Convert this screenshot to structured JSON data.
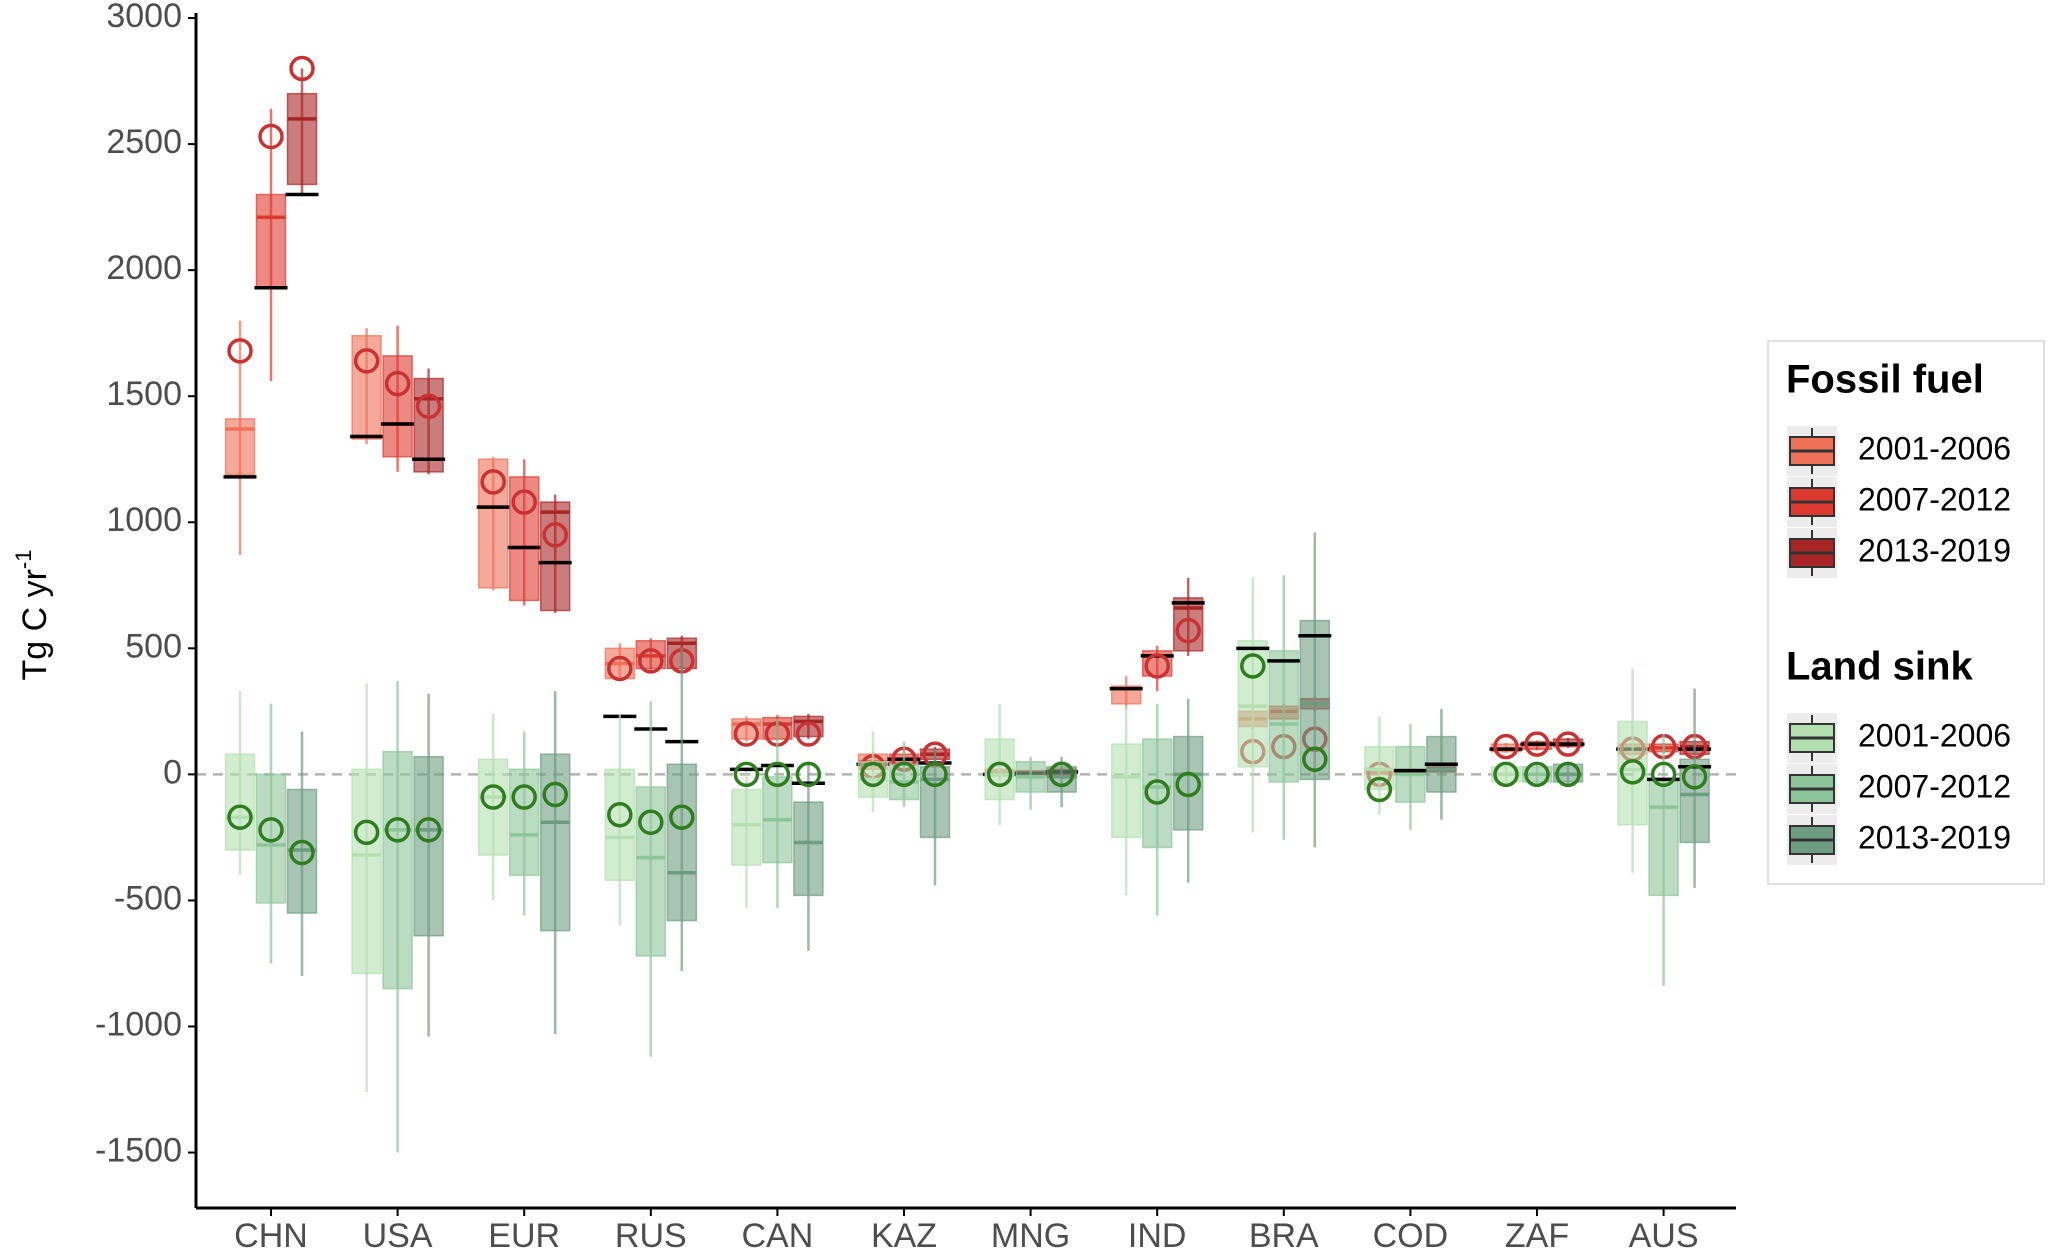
{
  "chart_data": {
    "type": "box",
    "ylabel": "Tg C  yr",
    "ylabel_sup": "-1",
    "categories": [
      "CHN",
      "USA",
      "EUR",
      "RUS",
      "CAN",
      "KAZ",
      "MNG",
      "IND",
      "BRA",
      "COD",
      "ZAF",
      "AUS"
    ],
    "ylim": [
      -1720,
      3020
    ],
    "yticks": [
      -1500,
      -1000,
      -500,
      0,
      500,
      1000,
      1500,
      2000,
      2500,
      3000
    ],
    "reference_line": 0,
    "groups": [
      {
        "title": "Fossil fuel",
        "estimate_color": "#c83232",
        "series": [
          {
            "name": "2001-2006",
            "color": "#ee7057",
            "boxes": [
              {
                "low": 870,
                "q1": 1190,
                "median": 1370,
                "q3": 1410,
                "high": 1800,
                "estimate": 1680,
                "reference": 1180
              },
              {
                "low": 1310,
                "q1": 1330,
                "median": 1340,
                "q3": 1740,
                "high": 1770,
                "estimate": 1640,
                "reference": 1340
              },
              {
                "low": 730,
                "q1": 740,
                "median": 1060,
                "q3": 1250,
                "high": 1260,
                "estimate": 1160,
                "reference": 1060
              },
              {
                "low": 370,
                "q1": 380,
                "median": 440,
                "q3": 500,
                "high": 520,
                "estimate": 420,
                "reference": 230
              },
              {
                "low": 130,
                "q1": 140,
                "median": 200,
                "q3": 220,
                "high": 230,
                "estimate": 160,
                "reference": null
              },
              {
                "low": 10,
                "q1": 20,
                "median": 50,
                "q3": 80,
                "high": 90,
                "estimate": 30,
                "reference": 40
              },
              {
                "low": -10,
                "q1": -5,
                "median": 5,
                "q3": 20,
                "high": 25,
                "estimate": 0,
                "reference": 0
              },
              {
                "low": 260,
                "q1": 280,
                "median": 340,
                "q3": 350,
                "high": 390,
                "estimate": null,
                "reference": 340
              },
              {
                "low": 180,
                "q1": 190,
                "median": 220,
                "q3": 250,
                "high": 260,
                "estimate": 90,
                "reference": null
              },
              {
                "low": -5,
                "q1": 0,
                "median": 10,
                "q3": 20,
                "high": 25,
                "estimate": 0,
                "reference": null
              },
              {
                "low": 85,
                "q1": 90,
                "median": 100,
                "q3": 120,
                "high": 125,
                "estimate": 110,
                "reference": 100
              },
              {
                "low": 75,
                "q1": 80,
                "median": 100,
                "q3": 120,
                "high": 125,
                "estimate": 100,
                "reference": 100
              }
            ]
          },
          {
            "name": "2007-2012",
            "color": "#dd3a2f",
            "boxes": [
              {
                "low": 1560,
                "q1": 1930,
                "median": 2210,
                "q3": 2300,
                "high": 2640,
                "estimate": 2530,
                "reference": 1930
              },
              {
                "low": 1200,
                "q1": 1260,
                "median": 1390,
                "q3": 1660,
                "high": 1780,
                "estimate": 1550,
                "reference": 1390
              },
              {
                "low": 670,
                "q1": 690,
                "median": 900,
                "q3": 1180,
                "high": 1250,
                "estimate": 1080,
                "reference": 900
              },
              {
                "low": 410,
                "q1": 420,
                "median": 470,
                "q3": 530,
                "high": 540,
                "estimate": 450,
                "reference": 180
              },
              {
                "low": 135,
                "q1": 140,
                "median": 200,
                "q3": 225,
                "high": 235,
                "estimate": 160,
                "reference": null
              },
              {
                "low": 30,
                "q1": 40,
                "median": 60,
                "q3": 80,
                "high": 100,
                "estimate": 60,
                "reference": 60
              },
              {
                "low": -10,
                "q1": -5,
                "median": 5,
                "q3": 15,
                "high": 20,
                "estimate": null,
                "reference": 5
              },
              {
                "low": 330,
                "q1": 390,
                "median": 470,
                "q3": 490,
                "high": 510,
                "estimate": 430,
                "reference": 470
              },
              {
                "low": 210,
                "q1": 220,
                "median": 250,
                "q3": 270,
                "high": 280,
                "estimate": 110,
                "reference": null
              },
              {
                "low": 0,
                "q1": 5,
                "median": 15,
                "q3": 20,
                "high": 25,
                "estimate": null,
                "reference": null
              },
              {
                "low": 95,
                "q1": 100,
                "median": 120,
                "q3": 130,
                "high": 135,
                "estimate": 120,
                "reference": 120
              },
              {
                "low": 85,
                "q1": 90,
                "median": 105,
                "q3": 120,
                "high": 125,
                "estimate": 110,
                "reference": null
              }
            ]
          },
          {
            "name": "2013-2019",
            "color": "#a82525",
            "boxes": [
              {
                "low": 2300,
                "q1": 2340,
                "median": 2600,
                "q3": 2700,
                "high": 2800,
                "estimate": 2800,
                "reference": 2300
              },
              {
                "low": 1190,
                "q1": 1200,
                "median": 1490,
                "q3": 1570,
                "high": 1610,
                "estimate": 1460,
                "reference": 1250
              },
              {
                "low": 640,
                "q1": 650,
                "median": 1040,
                "q3": 1080,
                "high": 1110,
                "estimate": 950,
                "reference": 840
              },
              {
                "low": 410,
                "q1": 420,
                "median": 520,
                "q3": 540,
                "high": 550,
                "estimate": 450,
                "reference": 130
              },
              {
                "low": 140,
                "q1": 150,
                "median": 210,
                "q3": 230,
                "high": 240,
                "estimate": 160,
                "reference": null
              },
              {
                "low": 50,
                "q1": 60,
                "median": 80,
                "q3": 100,
                "high": 110,
                "estimate": 80,
                "reference": 45
              },
              {
                "low": -15,
                "q1": -10,
                "median": 5,
                "q3": 20,
                "high": 25,
                "estimate": 0,
                "reference": 10
              },
              {
                "low": 470,
                "q1": 490,
                "median": 660,
                "q3": 700,
                "high": 780,
                "estimate": 570,
                "reference": 680
              },
              {
                "low": 250,
                "q1": 260,
                "median": 280,
                "q3": 300,
                "high": 310,
                "estimate": 140,
                "reference": null
              },
              {
                "low": 5,
                "q1": 10,
                "median": 20,
                "q3": 30,
                "high": 35,
                "estimate": null,
                "reference": null
              },
              {
                "low": 105,
                "q1": 110,
                "median": 120,
                "q3": 140,
                "high": 145,
                "estimate": 120,
                "reference": 120
              },
              {
                "low": 75,
                "q1": 80,
                "median": 110,
                "q3": 130,
                "high": 135,
                "estimate": 110,
                "reference": 100
              }
            ]
          }
        ]
      },
      {
        "title": "Land sink",
        "estimate_color": "#2e7d1e",
        "series": [
          {
            "name": "2001-2006",
            "color": "#b4dfb0",
            "boxes": [
              {
                "low": -400,
                "q1": -300,
                "median": -170,
                "q3": 80,
                "high": 330,
                "estimate": -170,
                "reference": null
              },
              {
                "low": -1260,
                "q1": -790,
                "median": -320,
                "q3": 20,
                "high": 360,
                "estimate": -230,
                "reference": null
              },
              {
                "low": -500,
                "q1": -320,
                "median": -90,
                "q3": 60,
                "high": 240,
                "estimate": -90,
                "reference": null
              },
              {
                "low": -600,
                "q1": -420,
                "median": -250,
                "q3": 20,
                "high": 240,
                "estimate": -160,
                "reference": null
              },
              {
                "low": -530,
                "q1": -360,
                "median": -200,
                "q3": -60,
                "high": 30,
                "estimate": 0,
                "reference": 20
              },
              {
                "low": -150,
                "q1": -90,
                "median": -20,
                "q3": 50,
                "high": 170,
                "estimate": 0,
                "reference": null
              },
              {
                "low": -200,
                "q1": -100,
                "median": 0,
                "q3": 140,
                "high": 280,
                "estimate": 0,
                "reference": null
              },
              {
                "low": -480,
                "q1": -250,
                "median": -10,
                "q3": 120,
                "high": 270,
                "estimate": null,
                "reference": null
              },
              {
                "low": -230,
                "q1": 30,
                "median": 270,
                "q3": 530,
                "high": 780,
                "estimate": 430,
                "reference": 500
              },
              {
                "low": -160,
                "q1": -60,
                "median": 20,
                "q3": 110,
                "high": 230,
                "estimate": -60,
                "reference": null
              },
              {
                "low": -40,
                "q1": -30,
                "median": 0,
                "q3": 30,
                "high": 40,
                "estimate": 0,
                "reference": null
              },
              {
                "low": -390,
                "q1": -200,
                "median": 20,
                "q3": 210,
                "high": 420,
                "estimate": 10,
                "reference": null
              }
            ]
          },
          {
            "name": "2007-2012",
            "color": "#8dc59a",
            "boxes": [
              {
                "low": -750,
                "q1": -510,
                "median": -280,
                "q3": 0,
                "high": 280,
                "estimate": -220,
                "reference": null
              },
              {
                "low": -1500,
                "q1": -850,
                "median": -220,
                "q3": 90,
                "high": 370,
                "estimate": -220,
                "reference": null
              },
              {
                "low": -560,
                "q1": -400,
                "median": -240,
                "q3": 20,
                "high": 170,
                "estimate": -90,
                "reference": null
              },
              {
                "low": -1120,
                "q1": -720,
                "median": -330,
                "q3": -50,
                "high": 290,
                "estimate": -190,
                "reference": null
              },
              {
                "low": -530,
                "q1": -350,
                "median": -180,
                "q3": -10,
                "high": 220,
                "estimate": 0,
                "reference": 35
              },
              {
                "low": -130,
                "q1": -100,
                "median": -30,
                "q3": 40,
                "high": 130,
                "estimate": 0,
                "reference": null
              },
              {
                "low": -140,
                "q1": -70,
                "median": -10,
                "q3": 50,
                "high": 70,
                "estimate": null,
                "reference": null
              },
              {
                "low": -560,
                "q1": -290,
                "median": -50,
                "q3": 140,
                "high": 280,
                "estimate": -70,
                "reference": null
              },
              {
                "low": -260,
                "q1": -30,
                "median": 200,
                "q3": 490,
                "high": 790,
                "estimate": null,
                "reference": 450
              },
              {
                "low": -220,
                "q1": -110,
                "median": 0,
                "q3": 110,
                "high": 200,
                "estimate": null,
                "reference": 15
              },
              {
                "low": -40,
                "q1": -30,
                "median": 0,
                "q3": 30,
                "high": 40,
                "estimate": 0,
                "reference": null
              },
              {
                "low": -840,
                "q1": -480,
                "median": -130,
                "q3": -20,
                "high": 160,
                "estimate": 0,
                "reference": -20
              }
            ]
          },
          {
            "name": "2013-2019",
            "color": "#6e9c80",
            "boxes": [
              {
                "low": -800,
                "q1": -550,
                "median": -300,
                "q3": -60,
                "high": 170,
                "estimate": -310,
                "reference": null
              },
              {
                "low": -1040,
                "q1": -640,
                "median": -220,
                "q3": 70,
                "high": 320,
                "estimate": -220,
                "reference": null
              },
              {
                "low": -1030,
                "q1": -620,
                "median": -190,
                "q3": 80,
                "high": 330,
                "estimate": -80,
                "reference": null
              },
              {
                "low": -780,
                "q1": -580,
                "median": -390,
                "q3": 40,
                "high": 500,
                "estimate": -170,
                "reference": null
              },
              {
                "low": -700,
                "q1": -480,
                "median": -270,
                "q3": -110,
                "high": 50,
                "estimate": 0,
                "reference": -35
              },
              {
                "low": -440,
                "q1": -250,
                "median": -20,
                "q3": 30,
                "high": 100,
                "estimate": 0,
                "reference": null
              },
              {
                "low": -130,
                "q1": -70,
                "median": -10,
                "q3": 30,
                "high": 70,
                "estimate": 0,
                "reference": null
              },
              {
                "low": -430,
                "q1": -220,
                "median": 0,
                "q3": 150,
                "high": 300,
                "estimate": -40,
                "reference": null
              },
              {
                "low": -290,
                "q1": -20,
                "median": 280,
                "q3": 610,
                "high": 960,
                "estimate": 60,
                "reference": 550
              },
              {
                "low": -180,
                "q1": -70,
                "median": 20,
                "q3": 150,
                "high": 260,
                "estimate": null,
                "reference": 40
              },
              {
                "low": -40,
                "q1": -30,
                "median": 0,
                "q3": 40,
                "high": 50,
                "estimate": 0,
                "reference": null
              },
              {
                "low": -450,
                "q1": -270,
                "median": -80,
                "q3": 60,
                "high": 340,
                "estimate": -10,
                "reference": 30
              }
            ]
          }
        ]
      }
    ]
  }
}
